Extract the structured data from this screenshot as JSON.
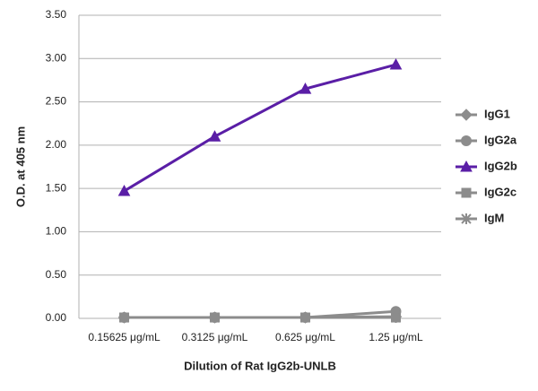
{
  "chart_data": {
    "type": "line",
    "x_label": "Dilution of Rat IgG2b-UNLB",
    "y_label": "O.D. at 405 nm",
    "categories": [
      "0.15625 μg/mL",
      "0.3125 μg/mL",
      "0.625 μg/mL",
      "1.25 μg/mL"
    ],
    "series": [
      {
        "name": "IgG1",
        "color": "#8c8c8c",
        "marker": "diamond",
        "values": [
          0.01,
          0.01,
          0.01,
          0.02
        ]
      },
      {
        "name": "IgG2a",
        "color": "#8c8c8c",
        "marker": "circle",
        "values": [
          0.01,
          0.01,
          0.01,
          0.08
        ]
      },
      {
        "name": "IgG2b",
        "color": "#5a1ea6",
        "marker": "triangle",
        "values": [
          1.47,
          2.1,
          2.65,
          2.93
        ]
      },
      {
        "name": "IgG2c",
        "color": "#8c8c8c",
        "marker": "square",
        "values": [
          0.01,
          0.01,
          0.01,
          0.01
        ]
      },
      {
        "name": "IgM",
        "color": "#8c8c8c",
        "marker": "star",
        "values": [
          0.01,
          0.01,
          0.01,
          0.01
        ]
      }
    ],
    "ylim": [
      0,
      3.5
    ],
    "yticks": [
      {
        "value": 0,
        "label": "0.00"
      },
      {
        "value": 0.5,
        "label": "0.50"
      },
      {
        "value": 1,
        "label": "1.00"
      },
      {
        "value": 1.5,
        "label": "1.50"
      },
      {
        "value": 2,
        "label": "2.00"
      },
      {
        "value": 2.5,
        "label": "2.50"
      },
      {
        "value": 3,
        "label": "3.00"
      },
      {
        "value": 3.5,
        "label": "3.50"
      }
    ],
    "grid": true,
    "legend": "right"
  }
}
